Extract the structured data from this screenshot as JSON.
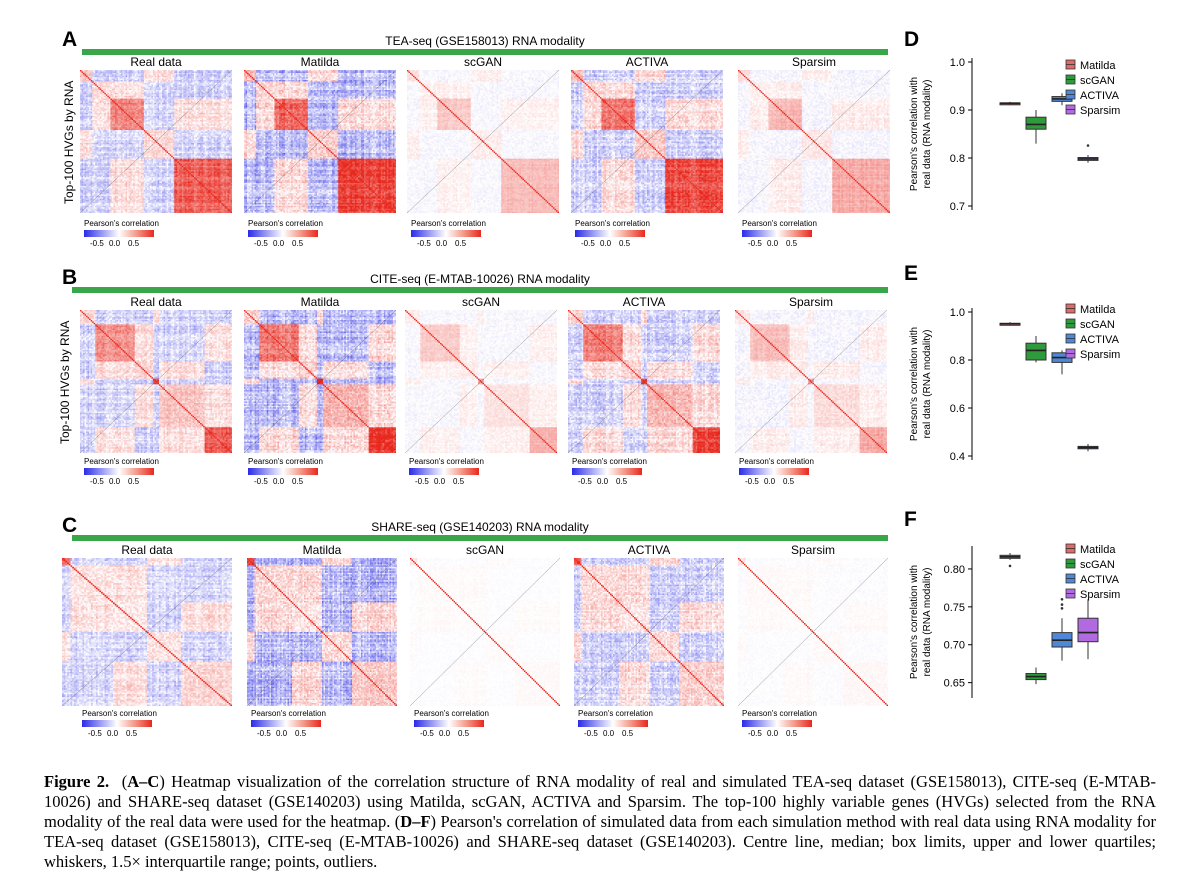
{
  "colors": {
    "green_bar": "#3aa64a",
    "corr_neg": "#2a2ae6",
    "corr_pos": "#e8281e",
    "matilda": "#e06a6a",
    "scgan": "#2e9a3c",
    "activa": "#4f88d8",
    "sparsim": "#b16ae0"
  },
  "rows": [
    {
      "letter": "A",
      "title": "TEA-seq (GSE158013) RNA modality",
      "ylabel": "Top-100 HVGs by RNA"
    },
    {
      "letter": "B",
      "title": "CITE-seq (E-MTAB-10026) RNA modality",
      "ylabel": "Top-100 HVGs by RNA"
    },
    {
      "letter": "C",
      "title": "SHARE-seq (GSE140203) RNA modality",
      "ylabel": "Top-100 HVGs by RNA"
    }
  ],
  "heatmap_titles": [
    "Real data",
    "Matilda",
    "scGAN",
    "ACTIVA",
    "Sparsim"
  ],
  "legend": {
    "title": "Pearson's correlation",
    "ticks": [
      "-0.5",
      "0.0",
      "0.5"
    ]
  },
  "box_panels": [
    {
      "letter": "D",
      "ylabel_line1": "Pearson's correlation with",
      "ylabel_line2": "real data (RNA modality)"
    },
    {
      "letter": "E",
      "ylabel_line1": "Pearson's correlation with",
      "ylabel_line2": "real data (RNA modality)"
    },
    {
      "letter": "F",
      "ylabel_line1": "Pearson's correlation with",
      "ylabel_line2": "real data (RNA modality)"
    }
  ],
  "chart_data": [
    {
      "type": "box",
      "panel": "D",
      "ylabel": "Pearson's correlation with real data (RNA modality)",
      "ylim": [
        0.7,
        1.0
      ],
      "yticks": [
        "0.7",
        "0.8",
        "0.9",
        "1.0"
      ],
      "legend": [
        "Matilda",
        "scGAN",
        "ACTIVA",
        "Sparsim"
      ],
      "series": [
        {
          "name": "Matilda",
          "min": 0.91,
          "q1": 0.913,
          "median": 0.914,
          "q3": 0.915,
          "max": 0.917,
          "outliers": []
        },
        {
          "name": "scGAN",
          "min": 0.83,
          "q1": 0.86,
          "median": 0.87,
          "q3": 0.885,
          "max": 0.9,
          "outliers": []
        },
        {
          "name": "ACTIVA",
          "min": 0.91,
          "q1": 0.918,
          "median": 0.923,
          "q3": 0.928,
          "max": 0.935,
          "outliers": []
        },
        {
          "name": "Sparsim",
          "min": 0.79,
          "q1": 0.795,
          "median": 0.798,
          "q3": 0.801,
          "max": 0.806,
          "outliers": [
            0.826
          ]
        }
      ]
    },
    {
      "type": "box",
      "panel": "E",
      "ylabel": "Pearson's correlation with real data (RNA modality)",
      "ylim": [
        0.4,
        1.0
      ],
      "yticks": [
        "0.4",
        "0.6",
        "0.8",
        "1.0"
      ],
      "legend": [
        "Matilda",
        "scGAN",
        "ACTIVA",
        "Sparsim"
      ],
      "series": [
        {
          "name": "Matilda",
          "min": 0.943,
          "q1": 0.948,
          "median": 0.951,
          "q3": 0.953,
          "max": 0.958,
          "outliers": []
        },
        {
          "name": "scGAN",
          "min": 0.79,
          "q1": 0.8,
          "median": 0.84,
          "q3": 0.87,
          "max": 0.9,
          "outliers": []
        },
        {
          "name": "ACTIVA",
          "min": 0.74,
          "q1": 0.79,
          "median": 0.81,
          "q3": 0.83,
          "max": 0.84,
          "outliers": []
        },
        {
          "name": "Sparsim",
          "min": 0.42,
          "q1": 0.43,
          "median": 0.435,
          "q3": 0.44,
          "max": 0.45,
          "outliers": []
        }
      ]
    },
    {
      "type": "box",
      "panel": "F",
      "ylabel": "Pearson's correlation with real data (RNA modality)",
      "ylim": [
        0.635,
        0.825
      ],
      "yticks": [
        "0.65",
        "0.70",
        "0.75",
        "0.80"
      ],
      "legend": [
        "Matilda",
        "scGAN",
        "ACTIVA",
        "Sparsim"
      ],
      "series": [
        {
          "name": "Matilda",
          "min": 0.812,
          "q1": 0.814,
          "median": 0.816,
          "q3": 0.818,
          "max": 0.821,
          "outliers": [
            0.804
          ]
        },
        {
          "name": "scGAN",
          "min": 0.648,
          "q1": 0.654,
          "median": 0.658,
          "q3": 0.662,
          "max": 0.67,
          "outliers": []
        },
        {
          "name": "ACTIVA",
          "min": 0.679,
          "q1": 0.697,
          "median": 0.706,
          "q3": 0.716,
          "max": 0.735,
          "outliers": [
            0.748,
            0.753,
            0.76
          ]
        },
        {
          "name": "Sparsim",
          "min": 0.681,
          "q1": 0.704,
          "median": 0.716,
          "q3": 0.735,
          "max": 0.76,
          "outliers": []
        }
      ]
    }
  ],
  "caption": {
    "label": "Figure 2.",
    "part1_open": "(",
    "ref1": "A–C",
    "part1_text": ") Heatmap visualization of the correlation structure of RNA modality of real and simulated TEA-seq dataset (GSE158013), CITE-seq (E-MTAB-10026) and SHARE-seq dataset (GSE140203) using Matilda, scGAN, ACTIVA and Sparsim. The top-100 highly variable genes (HVGs) selected from the RNA modality of the real data were used for the heatmap. (",
    "ref2": "D–F",
    "part2_text": ") Pearson's correlation of simulated data from each simulation method with real data using RNA modality for TEA-seq dataset (GSE158013), CITE-seq (E-MTAB-10026) and SHARE-seq dataset (GSE140203). Centre line, median; box limits, upper and lower quartiles; whiskers, 1.5× interquartile range; points, outliers."
  }
}
